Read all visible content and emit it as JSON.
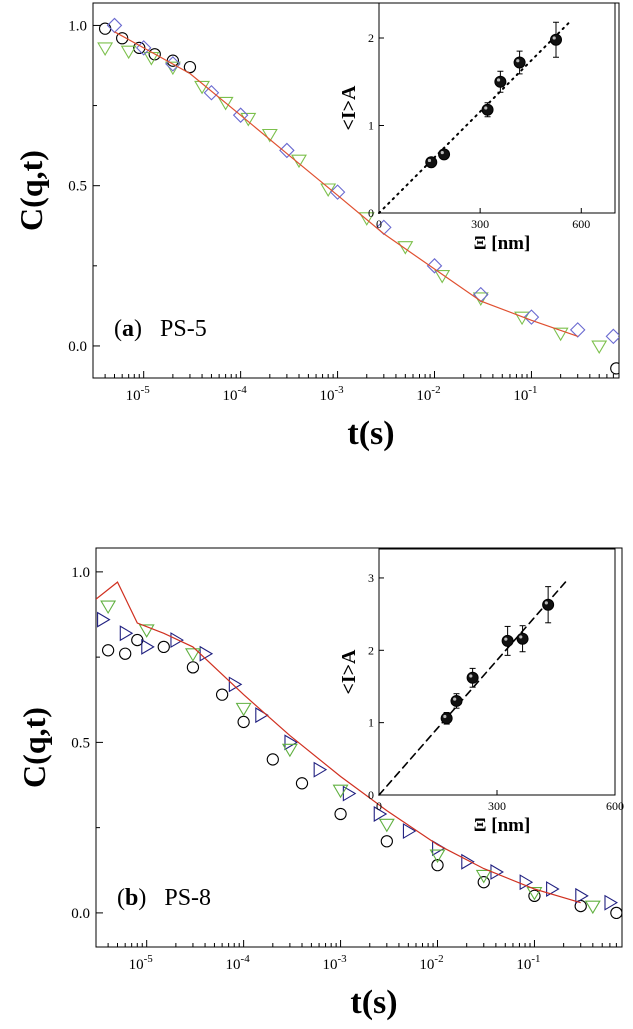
{
  "chart_data": [
    {
      "type": "scatter",
      "panel_label": "(a)",
      "panel_label_letter": "a",
      "sample": "PS-5",
      "xlabel": "t(s)",
      "ylabel": "C(q,t)",
      "xscale": "log",
      "xlim": [
        3e-06,
        0.8
      ],
      "ylim": [
        -0.1,
        1.07
      ],
      "xticks": [
        {
          "exp": "-5",
          "value": 1e-05
        },
        {
          "exp": "-4",
          "value": 0.0001
        },
        {
          "exp": "-3",
          "value": 0.001
        },
        {
          "exp": "-2",
          "value": 0.01
        },
        {
          "exp": "-1",
          "value": 0.1
        }
      ],
      "yticks": [
        "0.0",
        "0.5",
        "1.0"
      ],
      "series": [
        {
          "marker": "circle",
          "color": "#000000",
          "x": [
            4e-06,
            6e-06,
            9e-06,
            1.3e-05,
            2e-05,
            3e-05,
            0.75
          ],
          "y": [
            0.99,
            0.96,
            0.93,
            0.91,
            0.89,
            0.87,
            -0.07
          ]
        },
        {
          "marker": "triangle-down",
          "color": "#7cc04c",
          "x": [
            4e-06,
            7e-06,
            1.2e-05,
            2e-05,
            4e-05,
            7e-05,
            0.00012,
            0.0002,
            0.0004,
            0.0008,
            0.002,
            0.005,
            0.012,
            0.03,
            0.08,
            0.2,
            0.5
          ],
          "y": [
            0.93,
            0.92,
            0.9,
            0.87,
            0.81,
            0.76,
            0.71,
            0.66,
            0.58,
            0.49,
            0.4,
            0.31,
            0.22,
            0.15,
            0.09,
            0.04,
            0.0
          ]
        },
        {
          "marker": "diamond",
          "color": "#6a6ad0",
          "x": [
            5e-06,
            1e-05,
            2e-05,
            5e-05,
            0.0001,
            0.0003,
            0.001,
            0.003,
            0.01,
            0.03,
            0.1,
            0.3,
            0.7
          ],
          "y": [
            1.0,
            0.93,
            0.88,
            0.79,
            0.72,
            0.61,
            0.48,
            0.37,
            0.25,
            0.16,
            0.09,
            0.05,
            0.03
          ]
        },
        {
          "marker": "line",
          "color": "#e05030",
          "x": [
            5e-06,
            1e-05,
            3e-05,
            0.0001,
            0.0003,
            0.001,
            0.003,
            0.01,
            0.03,
            0.1,
            0.3
          ],
          "y": [
            0.98,
            0.93,
            0.85,
            0.72,
            0.6,
            0.47,
            0.35,
            0.24,
            0.14,
            0.08,
            0.03
          ]
        }
      ],
      "inset": {
        "type": "scatter",
        "xlabel": "Ξ [nm]",
        "ylabel": "<I>A",
        "xlim": [
          0,
          700
        ],
        "ylim": [
          0,
          2.4
        ],
        "xticks": [
          "0",
          "300",
          "600"
        ],
        "yticks": [
          "0",
          "1",
          "2"
        ],
        "points": [
          {
            "x": 155,
            "y": 0.58,
            "err": 0.04
          },
          {
            "x": 193,
            "y": 0.67,
            "err": 0.05
          },
          {
            "x": 322,
            "y": 1.18,
            "err": 0.08
          },
          {
            "x": 360,
            "y": 1.5,
            "err": 0.12
          },
          {
            "x": 417,
            "y": 1.72,
            "err": 0.13
          },
          {
            "x": 525,
            "y": 1.98,
            "err": 0.2
          }
        ],
        "fit_line": {
          "style": "dotted",
          "x": [
            0,
            570
          ],
          "y": [
            0,
            2.2
          ]
        }
      }
    },
    {
      "type": "scatter",
      "panel_label": "(b)",
      "panel_label_letter": "b",
      "sample": "PS-8",
      "xlabel": "t(s)",
      "ylabel": "C(q,t)",
      "xscale": "log",
      "xlim": [
        3e-06,
        0.8
      ],
      "ylim": [
        -0.1,
        1.07
      ],
      "xticks": [
        {
          "exp": "-5",
          "value": 1e-05
        },
        {
          "exp": "-4",
          "value": 0.0001
        },
        {
          "exp": "-3",
          "value": 0.001
        },
        {
          "exp": "-2",
          "value": 0.01
        },
        {
          "exp": "-1",
          "value": 0.1
        }
      ],
      "yticks": [
        "0.0",
        "0.5",
        "1.0"
      ],
      "series": [
        {
          "marker": "circle",
          "color": "#000000",
          "x": [
            4e-06,
            6e-06,
            8e-06,
            1.5e-05,
            3e-05,
            6e-05,
            0.0001,
            0.0002,
            0.0004,
            0.001,
            0.003,
            0.01,
            0.03,
            0.1,
            0.3,
            0.7
          ],
          "y": [
            0.77,
            0.76,
            0.8,
            0.78,
            0.72,
            0.64,
            0.56,
            0.45,
            0.38,
            0.29,
            0.21,
            0.14,
            0.09,
            0.05,
            0.02,
            0.0
          ]
        },
        {
          "marker": "triangle-right",
          "color": "#202080",
          "x": [
            3.5e-06,
            6e-06,
            1e-05,
            2e-05,
            4e-05,
            8e-05,
            0.00015,
            0.0003,
            0.0006,
            0.0012,
            0.0025,
            0.005,
            0.01,
            0.02,
            0.04,
            0.08,
            0.15,
            0.3,
            0.6
          ],
          "y": [
            0.86,
            0.82,
            0.78,
            0.8,
            0.76,
            0.67,
            0.58,
            0.5,
            0.42,
            0.35,
            0.29,
            0.24,
            0.19,
            0.15,
            0.12,
            0.09,
            0.07,
            0.05,
            0.03
          ]
        },
        {
          "marker": "triangle-down",
          "color": "#60b040",
          "x": [
            4e-06,
            1e-05,
            3e-05,
            0.0001,
            0.0003,
            0.001,
            0.003,
            0.01,
            0.03,
            0.1,
            0.4
          ],
          "y": [
            0.9,
            0.83,
            0.76,
            0.6,
            0.48,
            0.36,
            0.26,
            0.17,
            0.11,
            0.06,
            0.02
          ]
        },
        {
          "marker": "line",
          "color": "#d03020",
          "x": [
            3e-06,
            5e-06,
            8e-06,
            1.5e-05,
            3e-05,
            0.0001,
            0.0003,
            0.001,
            0.003,
            0.01,
            0.03,
            0.1,
            0.3
          ],
          "y": [
            0.92,
            0.97,
            0.85,
            0.82,
            0.78,
            0.64,
            0.52,
            0.4,
            0.3,
            0.2,
            0.13,
            0.07,
            0.03
          ]
        }
      ],
      "inset": {
        "type": "scatter",
        "xlabel": "Ξ [nm]",
        "ylabel": "<I>A",
        "xlim": [
          0,
          600
        ],
        "ylim": [
          0,
          3.4
        ],
        "xticks": [
          "0",
          "300",
          "600"
        ],
        "yticks": [
          "0",
          "1",
          "2",
          "3"
        ],
        "points": [
          {
            "x": 172,
            "y": 1.06,
            "err": 0.08
          },
          {
            "x": 197,
            "y": 1.3,
            "err": 0.1
          },
          {
            "x": 238,
            "y": 1.62,
            "err": 0.13
          },
          {
            "x": 327,
            "y": 2.13,
            "err": 0.2
          },
          {
            "x": 365,
            "y": 2.16,
            "err": 0.18
          },
          {
            "x": 430,
            "y": 2.63,
            "err": 0.25
          }
        ],
        "fit_line": {
          "style": "dashed",
          "x": [
            0,
            480
          ],
          "y": [
            0,
            2.98
          ]
        }
      }
    }
  ]
}
